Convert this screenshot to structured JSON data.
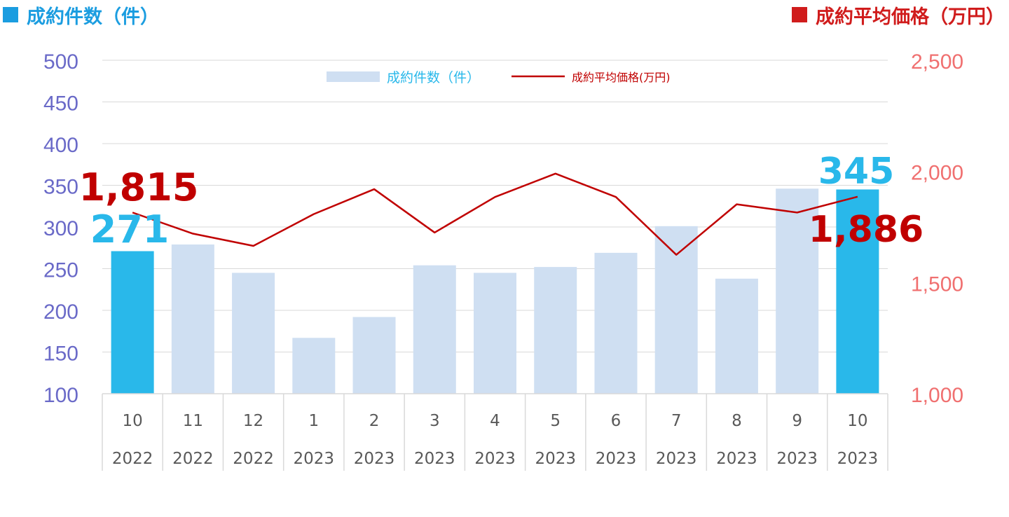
{
  "header": {
    "left_title": "成約件数（件）",
    "right_title": "成約平均価格（万円）",
    "left_color": "#1b9de0",
    "right_color": "#d01c1c"
  },
  "chart_data": {
    "type": "bar+line",
    "categories": [
      {
        "month": "10",
        "year": "2022"
      },
      {
        "month": "11",
        "year": "2022"
      },
      {
        "month": "12",
        "year": "2022"
      },
      {
        "month": "1",
        "year": "2023"
      },
      {
        "month": "2",
        "year": "2023"
      },
      {
        "month": "3",
        "year": "2023"
      },
      {
        "month": "4",
        "year": "2023"
      },
      {
        "month": "5",
        "year": "2023"
      },
      {
        "month": "6",
        "year": "2023"
      },
      {
        "month": "7",
        "year": "2023"
      },
      {
        "month": "8",
        "year": "2023"
      },
      {
        "month": "9",
        "year": "2023"
      },
      {
        "month": "10",
        "year": "2023"
      }
    ],
    "series": [
      {
        "name": "成約件数（件）",
        "type": "bar",
        "axis": "left",
        "values": [
          271,
          279,
          245,
          167,
          192,
          254,
          245,
          252,
          269,
          301,
          238,
          346,
          345
        ],
        "color": "#cfdff2",
        "highlight_color": "#29b8ea",
        "highlight_indices": [
          0,
          12
        ]
      },
      {
        "name": "成約平均価格(万円)",
        "type": "line",
        "axis": "right",
        "values": [
          1815,
          1720,
          1665,
          1808,
          1920,
          1725,
          1885,
          1990,
          1885,
          1625,
          1852,
          1815,
          1886
        ],
        "color": "#c00000"
      }
    ],
    "y_left": {
      "min": 100,
      "max": 500,
      "ticks": [
        "100",
        "150",
        "200",
        "250",
        "300",
        "350",
        "400",
        "450",
        "500"
      ],
      "color": "#6a6ac8"
    },
    "y_right": {
      "min": 1000,
      "max": 2500,
      "ticks": [
        "1,000",
        "1,500",
        "2,000",
        "2,500"
      ],
      "color": "#f07070"
    },
    "annotations": [
      {
        "text": "1,815",
        "target": "line",
        "index": 0,
        "color": "#c00000"
      },
      {
        "text": "271",
        "target": "bar",
        "index": 0,
        "color": "#29b8ea"
      },
      {
        "text": "345",
        "target": "bar",
        "index": 12,
        "color": "#29b8ea"
      },
      {
        "text": "1,886",
        "target": "line",
        "index": 12,
        "color": "#c00000"
      }
    ],
    "legend_position": "top-center",
    "grid": true
  }
}
